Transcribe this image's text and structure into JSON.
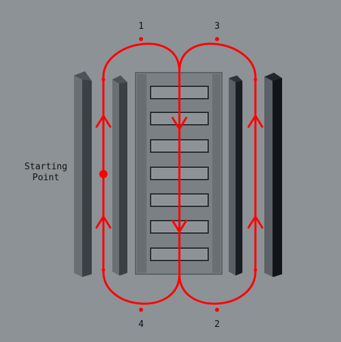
{
  "labels": {
    "start_line1": "Starting",
    "start_line2": "Point",
    "n1": "1",
    "n2": "2",
    "n3": "3",
    "n4": "4"
  },
  "colors": {
    "background": "#8d9296",
    "path": "#ff0000",
    "wall": "#6e7378",
    "wall_dark": "#1a1e24",
    "ladder": "#7a7f84"
  }
}
